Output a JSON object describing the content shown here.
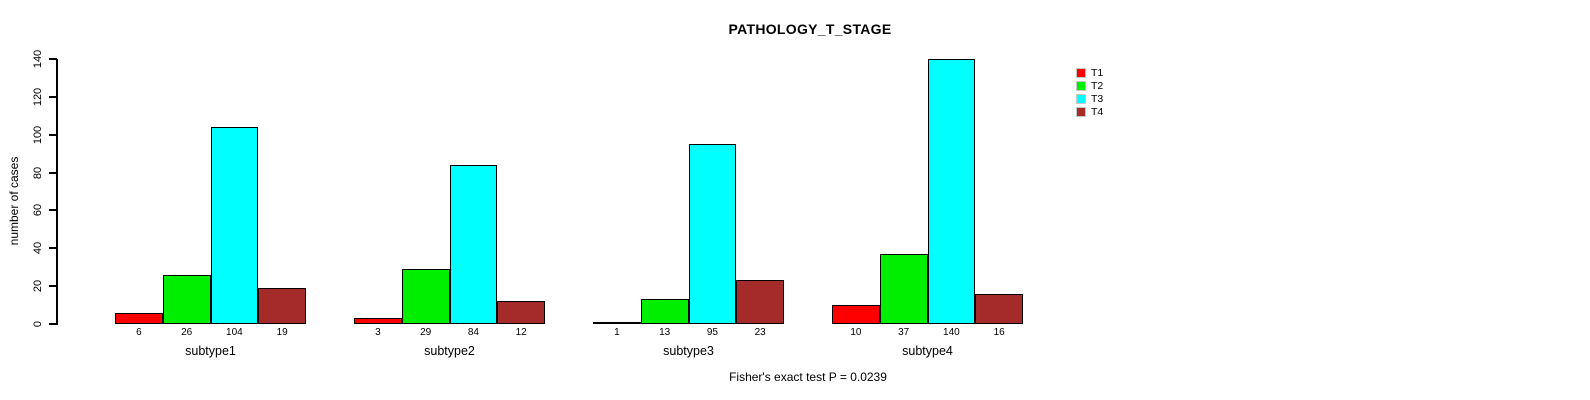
{
  "title": "PATHOLOGY_T_STAGE",
  "footnote": "Fisher's exact test P = 0.0239",
  "chart_data": {
    "type": "bar",
    "grouped": true,
    "title": "PATHOLOGY_T_STAGE",
    "xlabel": "",
    "ylabel": "number of cases",
    "ylim": [
      0,
      140
    ],
    "yticks": [
      0,
      20,
      40,
      60,
      80,
      100,
      120,
      140
    ],
    "categories": [
      "subtype1",
      "subtype2",
      "subtype3",
      "subtype4"
    ],
    "series": [
      {
        "name": "T1",
        "color": "#FF0000",
        "values": [
          6,
          3,
          1,
          10
        ]
      },
      {
        "name": "T2",
        "color": "#00EE00",
        "values": [
          26,
          29,
          13,
          37
        ]
      },
      {
        "name": "T3",
        "color": "#00FFFF",
        "values": [
          104,
          84,
          95,
          140
        ]
      },
      {
        "name": "T4",
        "color": "#A52A2A",
        "values": [
          19,
          12,
          23,
          16
        ]
      }
    ],
    "bar_value_labels_shown": true,
    "legend_position": "top-right",
    "legend_entries": [
      "T1",
      "T2",
      "T3",
      "T4"
    ],
    "annotation": "Fisher's exact test P = 0.0239",
    "grid": false,
    "bar_border_color": "#000000",
    "background_color": "#FFFFFF"
  }
}
